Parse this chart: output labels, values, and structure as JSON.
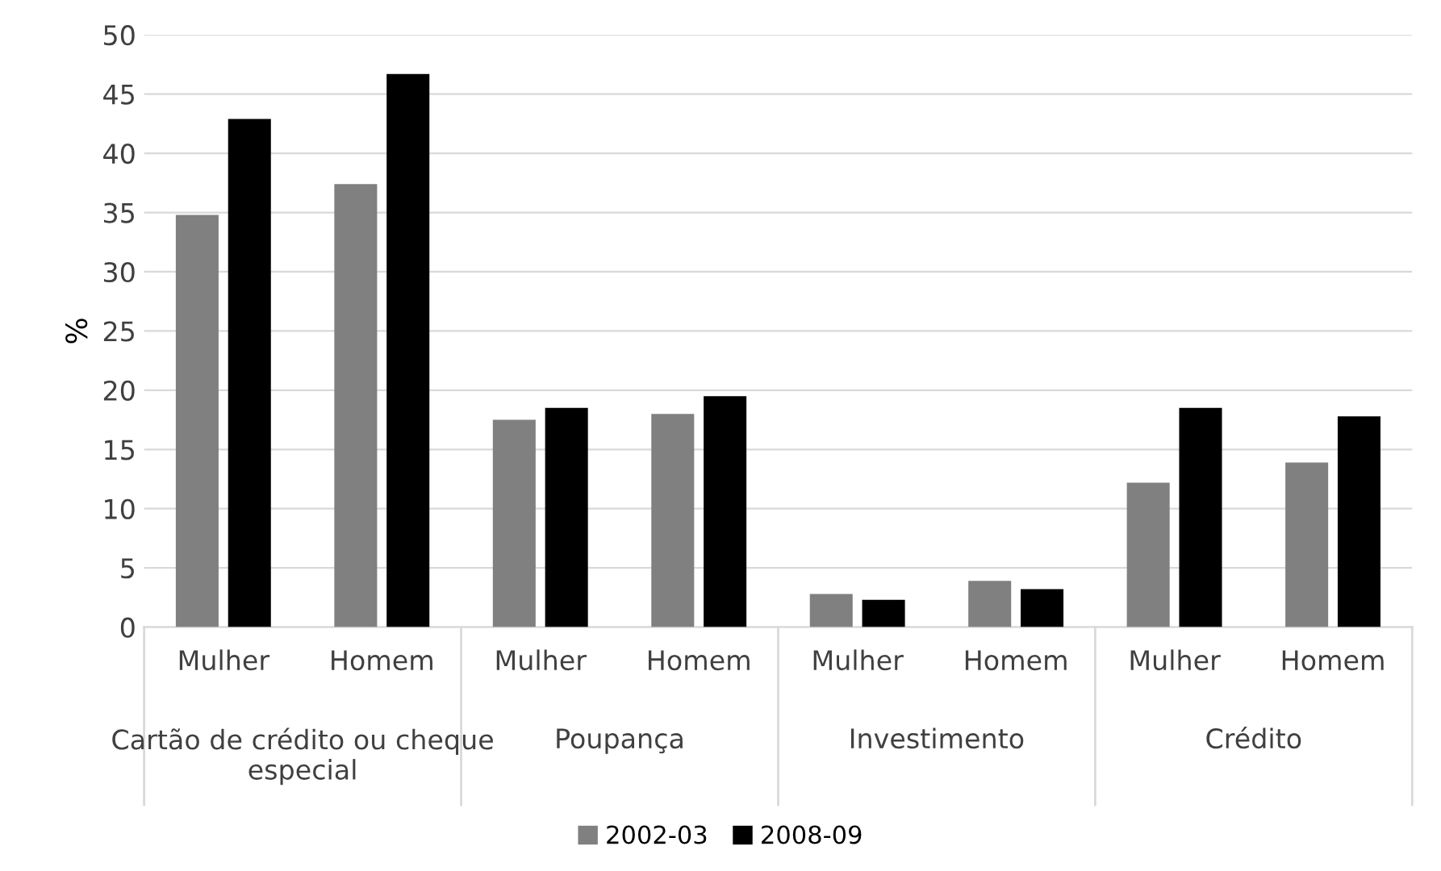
{
  "chart_data": {
    "type": "bar",
    "ylabel": "%",
    "categories": [
      "Mulher",
      "Homem",
      "Mulher",
      "Homem",
      "Mulher",
      "Homem",
      "Mulher",
      "Homem"
    ],
    "annotations": [
      "Cartão de crédito ou cheque especial",
      "Poupança",
      "Investimento",
      "Crédito"
    ],
    "series": [
      {
        "name": "2002-03",
        "color": "#808080",
        "values": [
          34.8,
          37.4,
          17.5,
          18.0,
          2.8,
          3.9,
          12.2,
          13.9
        ]
      },
      {
        "name": "2008-09",
        "color": "#000000",
        "values": [
          42.9,
          46.7,
          18.5,
          19.5,
          2.3,
          3.2,
          18.5,
          17.8
        ]
      }
    ],
    "ylim": [
      0,
      50
    ],
    "yticks": [
      0,
      5,
      10,
      15,
      20,
      25,
      30,
      35,
      40,
      45,
      50
    ],
    "grid": "y",
    "legend": "bottom"
  }
}
